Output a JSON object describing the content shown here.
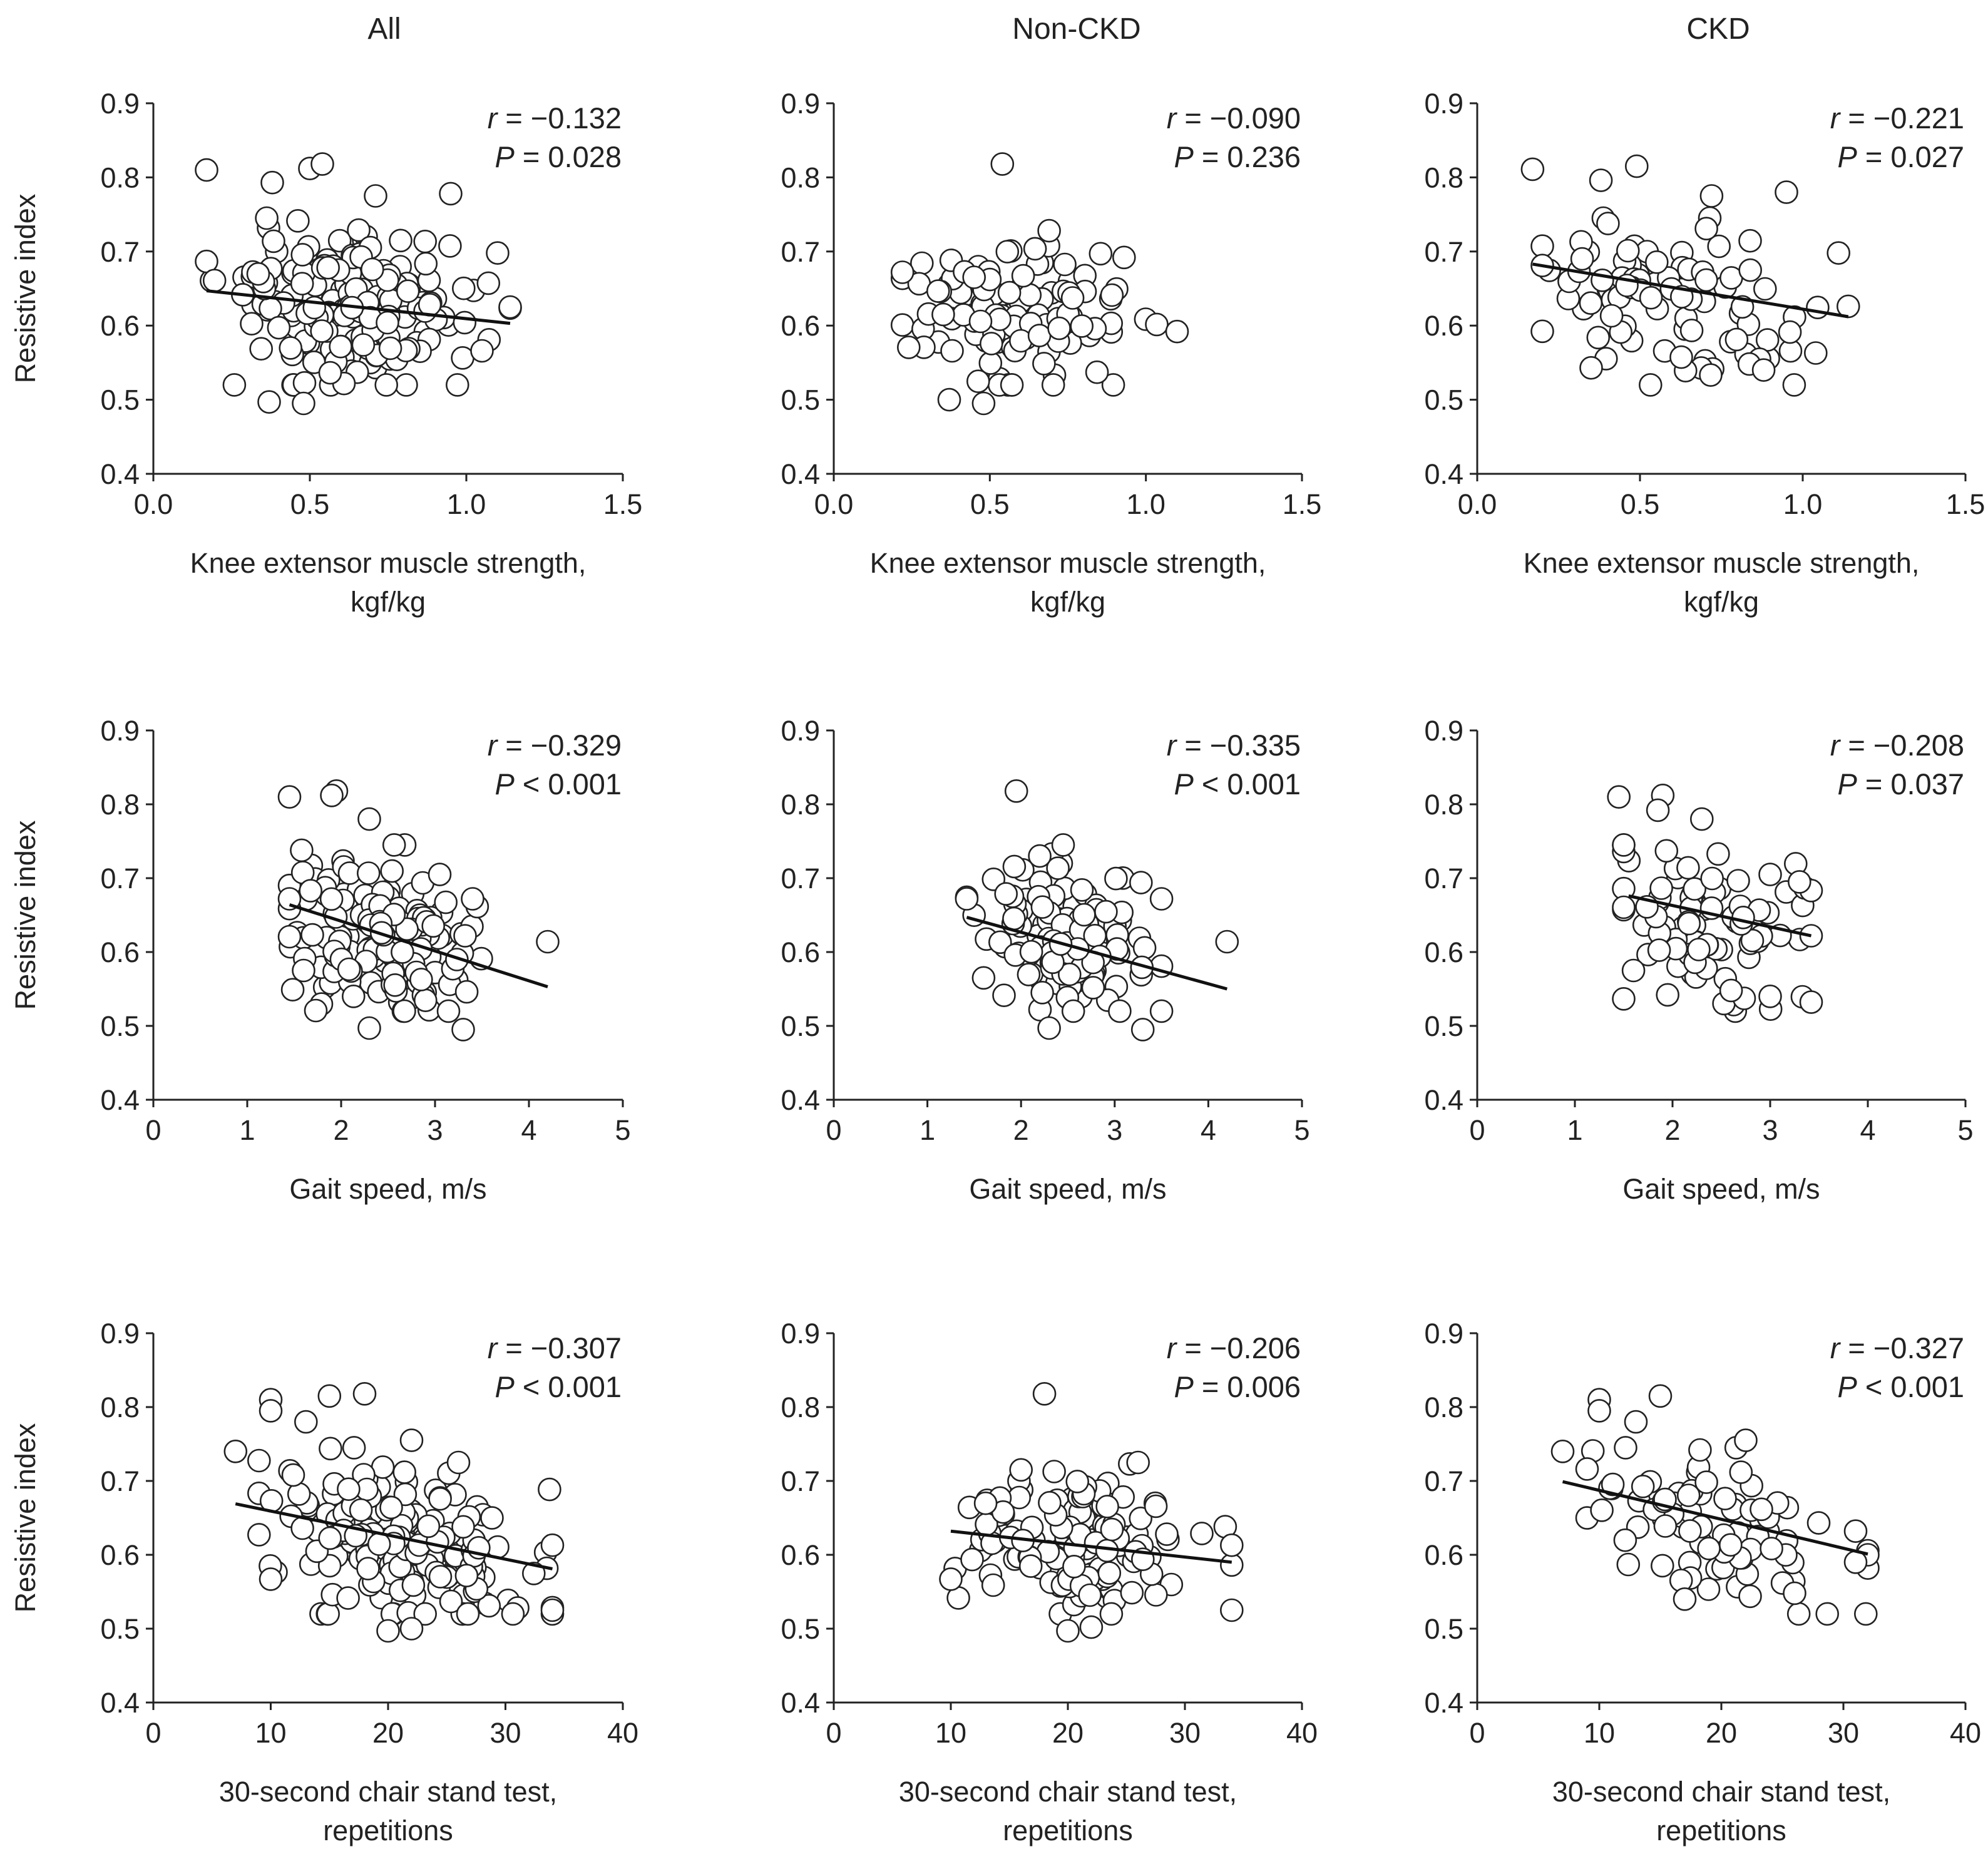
{
  "figure": {
    "columns": [
      "All",
      "Non-CKD",
      "CKD"
    ],
    "ylabel": "Resistive index"
  },
  "chart_data": [
    {
      "id": "p11",
      "type": "scatter",
      "column": "All",
      "row": 1,
      "xlabel": [
        "Knee extensor muscle strength,",
        "kgf/kg"
      ],
      "ylabel": "Resistive index",
      "xlim": [
        0,
        1.5
      ],
      "ylim": [
        0.4,
        0.9
      ],
      "xticks": [
        "0.0",
        "0.5",
        "1.0",
        "1.5"
      ],
      "yticks": [
        "0.4",
        "0.5",
        "0.6",
        "0.7",
        "0.8",
        "0.9"
      ],
      "r_label": "r",
      "r_value": "= −0.132",
      "p_label": "P",
      "p_value": "= 0.028",
      "fit": [
        [
          0.17,
          0.647
        ],
        [
          1.14,
          0.603
        ]
      ],
      "seed": 11,
      "n": 180,
      "cx": 0.62,
      "sx": 0.19,
      "xmin": 0.17,
      "xmax": 1.14,
      "cy": 0.625,
      "sy": 0.055,
      "extra": [
        [
          0.17,
          0.81
        ],
        [
          0.5,
          0.812
        ],
        [
          0.54,
          0.818
        ],
        [
          0.95,
          0.778
        ],
        [
          0.37,
          0.497
        ],
        [
          0.48,
          0.495
        ],
        [
          1.14,
          0.625
        ],
        [
          1.1,
          0.698
        ],
        [
          1.05,
          0.566
        ],
        [
          0.38,
          0.793
        ],
        [
          0.71,
          0.775
        ]
      ]
    },
    {
      "id": "p12",
      "type": "scatter",
      "column": "Non-CKD",
      "row": 1,
      "xlabel": [
        "Knee extensor muscle strength,",
        "kgf/kg"
      ],
      "ylabel": "Resistive index",
      "xlim": [
        0,
        1.5
      ],
      "ylim": [
        0.4,
        0.9
      ],
      "xticks": [
        "0.0",
        "0.5",
        "1.0",
        "1.5"
      ],
      "yticks": [
        "0.4",
        "0.5",
        "0.6",
        "0.7",
        "0.8",
        "0.9"
      ],
      "r_label": "r",
      "r_value": "= −0.090",
      "p_label": "P",
      "p_value": "= 0.236",
      "fit": null,
      "seed": 12,
      "n": 120,
      "cx": 0.58,
      "sx": 0.17,
      "xmin": 0.22,
      "xmax": 1.1,
      "cy": 0.62,
      "sy": 0.045,
      "extra": [
        [
          0.54,
          0.818
        ],
        [
          0.37,
          0.5
        ],
        [
          0.48,
          0.495
        ],
        [
          1.1,
          0.592
        ],
        [
          0.69,
          0.728
        ],
        [
          0.93,
          0.692
        ],
        [
          0.22,
          0.672
        ]
      ]
    },
    {
      "id": "p13",
      "type": "scatter",
      "column": "CKD",
      "row": 1,
      "xlabel": [
        "Knee extensor muscle strength,",
        "kgf/kg"
      ],
      "ylabel": "Resistive index",
      "xlim": [
        0,
        1.5
      ],
      "ylim": [
        0.4,
        0.9
      ],
      "xticks": [
        "0.0",
        "0.5",
        "1.0",
        "1.5"
      ],
      "yticks": [
        "0.4",
        "0.5",
        "0.6",
        "0.7",
        "0.8",
        "0.9"
      ],
      "r_label": "r",
      "r_value": "= −0.221",
      "p_label": "P",
      "p_value": "= 0.027",
      "fit": [
        [
          0.17,
          0.683
        ],
        [
          1.14,
          0.612
        ]
      ],
      "seed": 13,
      "n": 85,
      "cx": 0.6,
      "sx": 0.2,
      "xmin": 0.2,
      "xmax": 1.14,
      "cy": 0.64,
      "sy": 0.055,
      "extra": [
        [
          0.17,
          0.811
        ],
        [
          0.49,
          0.815
        ],
        [
          0.38,
          0.796
        ],
        [
          0.95,
          0.78
        ],
        [
          0.72,
          0.775
        ],
        [
          0.35,
          0.543
        ],
        [
          0.88,
          0.54
        ],
        [
          1.11,
          0.698
        ],
        [
          1.14,
          0.626
        ],
        [
          1.04,
          0.563
        ]
      ]
    },
    {
      "id": "p21",
      "type": "scatter",
      "column": "All",
      "row": 2,
      "xlabel": [
        "Gait speed,  m/s"
      ],
      "ylabel": "Resistive index",
      "xlim": [
        0,
        5
      ],
      "ylim": [
        0.4,
        0.9
      ],
      "xticks": [
        "0",
        "1",
        "2",
        "3",
        "4",
        "5"
      ],
      "yticks": [
        "0.4",
        "0.5",
        "0.6",
        "0.7",
        "0.8",
        "0.9"
      ],
      "r_label": "r",
      "r_value": "= −0.329",
      "p_label": "P",
      "p_value": "< 0.001",
      "fit": [
        [
          1.45,
          0.664
        ],
        [
          4.2,
          0.553
        ]
      ],
      "seed": 21,
      "n": 175,
      "cx": 2.45,
      "sx": 0.48,
      "xmin": 1.45,
      "xmax": 3.6,
      "cy": 0.62,
      "sy": 0.05,
      "extra": [
        [
          1.45,
          0.81
        ],
        [
          1.95,
          0.818
        ],
        [
          1.9,
          0.812
        ],
        [
          2.3,
          0.78
        ],
        [
          4.2,
          0.614
        ],
        [
          2.3,
          0.497
        ],
        [
          3.3,
          0.495
        ],
        [
          1.45,
          0.672
        ],
        [
          3.05,
          0.705
        ],
        [
          3.4,
          0.672
        ],
        [
          1.6,
          0.575
        ]
      ]
    },
    {
      "id": "p22",
      "type": "scatter",
      "column": "Non-CKD",
      "row": 2,
      "xlabel": [
        "Gait speed,  m/s"
      ],
      "ylabel": "Resistive index",
      "xlim": [
        0,
        5
      ],
      "ylim": [
        0.4,
        0.9
      ],
      "xticks": [
        "0",
        "1",
        "2",
        "3",
        "4",
        "5"
      ],
      "yticks": [
        "0.4",
        "0.5",
        "0.6",
        "0.7",
        "0.8",
        "0.9"
      ],
      "r_label": "r",
      "r_value": "= −0.335",
      "p_label": "P",
      "p_value": "< 0.001",
      "fit": [
        [
          1.42,
          0.647
        ],
        [
          4.2,
          0.55
        ]
      ],
      "seed": 22,
      "n": 120,
      "cx": 2.5,
      "sx": 0.45,
      "xmin": 1.42,
      "xmax": 3.5,
      "cy": 0.615,
      "sy": 0.045,
      "extra": [
        [
          1.95,
          0.818
        ],
        [
          1.42,
          0.672
        ],
        [
          4.2,
          0.614
        ],
        [
          2.3,
          0.497
        ],
        [
          3.3,
          0.495
        ],
        [
          2.2,
          0.73
        ],
        [
          3.5,
          0.672
        ],
        [
          1.6,
          0.565
        ]
      ]
    },
    {
      "id": "p23",
      "type": "scatter",
      "column": "CKD",
      "row": 2,
      "xlabel": [
        "Gait speed,  m/s"
      ],
      "ylabel": "Resistive index",
      "xlim": [
        0,
        5
      ],
      "ylim": [
        0.4,
        0.9
      ],
      "xticks": [
        "0",
        "1",
        "2",
        "3",
        "4",
        "5"
      ],
      "yticks": [
        "0.4",
        "0.5",
        "0.6",
        "0.7",
        "0.8",
        "0.9"
      ],
      "r_label": "r",
      "r_value": "= −0.208",
      "p_label": "P",
      "p_value": "= 0.037",
      "fit": [
        [
          1.55,
          0.676
        ],
        [
          3.42,
          0.622
        ]
      ],
      "seed": 23,
      "n": 85,
      "cx": 2.4,
      "sx": 0.5,
      "xmin": 1.5,
      "xmax": 3.42,
      "cy": 0.645,
      "sy": 0.055,
      "extra": [
        [
          1.45,
          0.81
        ],
        [
          1.9,
          0.812
        ],
        [
          2.3,
          0.78
        ],
        [
          1.85,
          0.792
        ],
        [
          3.0,
          0.705
        ],
        [
          3.3,
          0.695
        ],
        [
          3.42,
          0.622
        ],
        [
          1.95,
          0.542
        ],
        [
          3.0,
          0.54
        ],
        [
          2.6,
          0.548
        ],
        [
          1.6,
          0.575
        ]
      ]
    },
    {
      "id": "p31",
      "type": "scatter",
      "column": "All",
      "row": 3,
      "xlabel": [
        "30-second chair stand test,",
        "repetitions"
      ],
      "ylabel": "Resistive index",
      "xlim": [
        0,
        40
      ],
      "ylim": [
        0.4,
        0.9
      ],
      "xticks": [
        "0",
        "10",
        "20",
        "30",
        "40"
      ],
      "yticks": [
        "0.4",
        "0.5",
        "0.6",
        "0.7",
        "0.8",
        "0.9"
      ],
      "r_label": "r",
      "r_value": "= −0.307",
      "p_label": "P",
      "p_value": "< 0.001",
      "fit": [
        [
          7,
          0.669
        ],
        [
          34,
          0.581
        ]
      ],
      "seed": 31,
      "n": 180,
      "cx": 21,
      "sx": 5.6,
      "xmin": 9,
      "xmax": 34,
      "cy": 0.615,
      "sy": 0.05,
      "extra": [
        [
          7,
          0.74
        ],
        [
          10,
          0.81
        ],
        [
          10,
          0.795
        ],
        [
          15,
          0.815
        ],
        [
          18,
          0.818
        ],
        [
          13,
          0.78
        ],
        [
          22,
          0.755
        ],
        [
          20,
          0.497
        ],
        [
          22,
          0.5
        ],
        [
          34,
          0.525
        ],
        [
          34,
          0.613
        ],
        [
          10,
          0.567
        ],
        [
          26,
          0.725
        ]
      ]
    },
    {
      "id": "p32",
      "type": "scatter",
      "column": "Non-CKD",
      "row": 3,
      "xlabel": [
        "30-second chair stand test,",
        "repetitions"
      ],
      "ylabel": "Resistive index",
      "xlim": [
        0,
        40
      ],
      "ylim": [
        0.4,
        0.9
      ],
      "xticks": [
        "0",
        "10",
        "20",
        "30",
        "40"
      ],
      "yticks": [
        "0.4",
        "0.5",
        "0.6",
        "0.7",
        "0.8",
        "0.9"
      ],
      "r_label": "r",
      "r_value": "= −0.206",
      "p_label": "P",
      "p_value": "= 0.006",
      "fit": [
        [
          10,
          0.632
        ],
        [
          34,
          0.59
        ]
      ],
      "seed": 32,
      "n": 130,
      "cx": 21,
      "sx": 5.5,
      "xmin": 10,
      "xmax": 34,
      "cy": 0.615,
      "sy": 0.045,
      "extra": [
        [
          18,
          0.818
        ],
        [
          10,
          0.567
        ],
        [
          20,
          0.497
        ],
        [
          22,
          0.502
        ],
        [
          34,
          0.525
        ],
        [
          34,
          0.613
        ],
        [
          26,
          0.725
        ],
        [
          16,
          0.715
        ]
      ]
    },
    {
      "id": "p33",
      "type": "scatter",
      "column": "CKD",
      "row": 3,
      "xlabel": [
        "30-second chair stand test,",
        "repetitions"
      ],
      "ylabel": "Resistive index",
      "xlim": [
        0,
        40
      ],
      "ylim": [
        0.4,
        0.9
      ],
      "xticks": [
        "0",
        "10",
        "20",
        "30",
        "40"
      ],
      "yticks": [
        "0.4",
        "0.5",
        "0.6",
        "0.7",
        "0.8",
        "0.9"
      ],
      "r_label": "r",
      "r_value": "= −0.327",
      "p_label": "P",
      "p_value": "< 0.001",
      "fit": [
        [
          7,
          0.699
        ],
        [
          32,
          0.601
        ]
      ],
      "seed": 33,
      "n": 85,
      "cx": 19,
      "sx": 5,
      "xmin": 9,
      "xmax": 32,
      "cy": 0.635,
      "sy": 0.05,
      "extra": [
        [
          7,
          0.74
        ],
        [
          10,
          0.81
        ],
        [
          10,
          0.795
        ],
        [
          15,
          0.815
        ],
        [
          13,
          0.78
        ],
        [
          22,
          0.755
        ],
        [
          26,
          0.548
        ],
        [
          32,
          0.6
        ],
        [
          31,
          0.59
        ],
        [
          31,
          0.632
        ],
        [
          17,
          0.54
        ]
      ]
    }
  ]
}
